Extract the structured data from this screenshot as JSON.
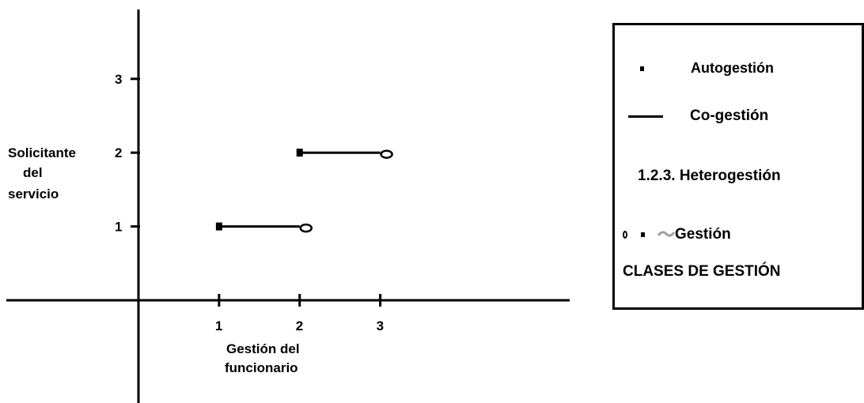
{
  "diagram": {
    "x_axis": {
      "ticks": [
        "1",
        "2",
        "3"
      ],
      "label_line1": "Gestión del",
      "label_line2": "funcionario"
    },
    "y_axis": {
      "ticks": [
        "1",
        "2",
        "3"
      ],
      "label_line1": "Solicitante",
      "label_line2": "del",
      "label_line3": "servicio"
    },
    "segments": [
      {
        "from": [
          1,
          1
        ],
        "to": [
          2,
          1
        ],
        "start_marker": "square",
        "end_marker": "circle"
      },
      {
        "from": [
          2,
          2
        ],
        "to": [
          3,
          2
        ],
        "start_marker": "square",
        "end_marker": "circle"
      }
    ],
    "x_range": [
      0,
      5.35
    ],
    "y_range": [
      0,
      3.94
    ]
  },
  "legend": {
    "autogestion": "Autogestión",
    "cogestion": "Co-gestión",
    "heterogestion": "1.2.3. Heterogestión",
    "gestion": "Gestión",
    "title": "CLASES DE GESTIÓN"
  },
  "colors": {
    "ink": "#000000",
    "background": "#ffffff",
    "wave": "#a0a0a0"
  }
}
